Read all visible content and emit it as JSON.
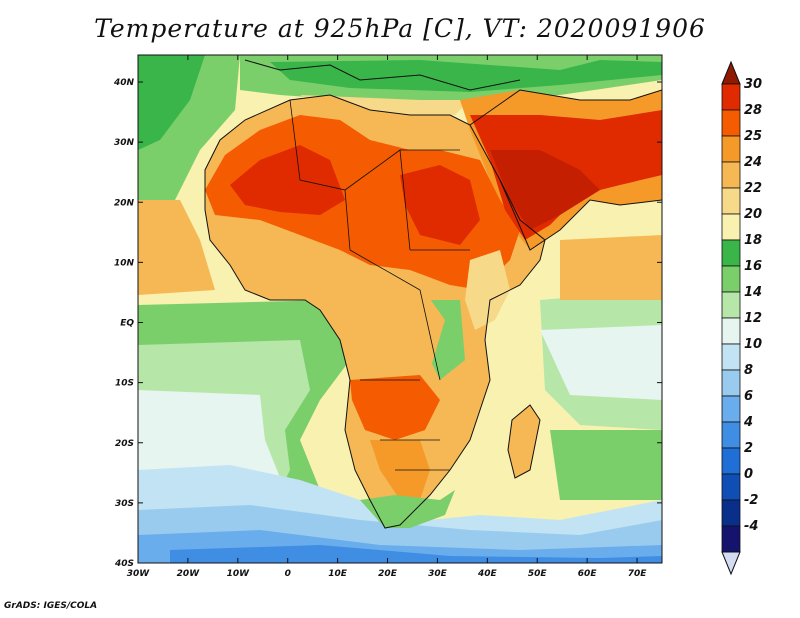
{
  "title": "Temperature at 925hPa [C], VT: 2020091906",
  "credit": "GrADS: IGES/COLA",
  "axes": {
    "lat_labels": [
      "40N",
      "30N",
      "20N",
      "10N",
      "EQ",
      "10S",
      "20S",
      "30S",
      "40S"
    ],
    "lon_labels": [
      "30W",
      "20W",
      "10W",
      "0",
      "10E",
      "20E",
      "30E",
      "40E",
      "50E",
      "60E",
      "70E"
    ]
  },
  "colorbar": {
    "labels": [
      "30",
      "28",
      "25",
      "24",
      "22",
      "20",
      "18",
      "16",
      "14",
      "12",
      "10",
      "8",
      "6",
      "4",
      "2",
      "0",
      "-2",
      "-4"
    ],
    "colors": [
      "#8f1a00",
      "#e02a00",
      "#f55b00",
      "#f59a28",
      "#f5b855",
      "#f7d98a",
      "#f8f1b0",
      "#39b54a",
      "#7bcf6b",
      "#b6e6a8",
      "#e6f5f0",
      "#c2e3f3",
      "#99cbef",
      "#6aadec",
      "#3f8ee3",
      "#1f6fd6",
      "#0f4fb5",
      "#0a2f8a",
      "#14146e",
      "#d4dcf2"
    ],
    "units": "C"
  },
  "map": {
    "variable": "Temperature at 925hPa",
    "region": "Africa, Arabia and Indian Ocean, 40S-45N, 30W-75E",
    "valid_time": "2020091906"
  }
}
